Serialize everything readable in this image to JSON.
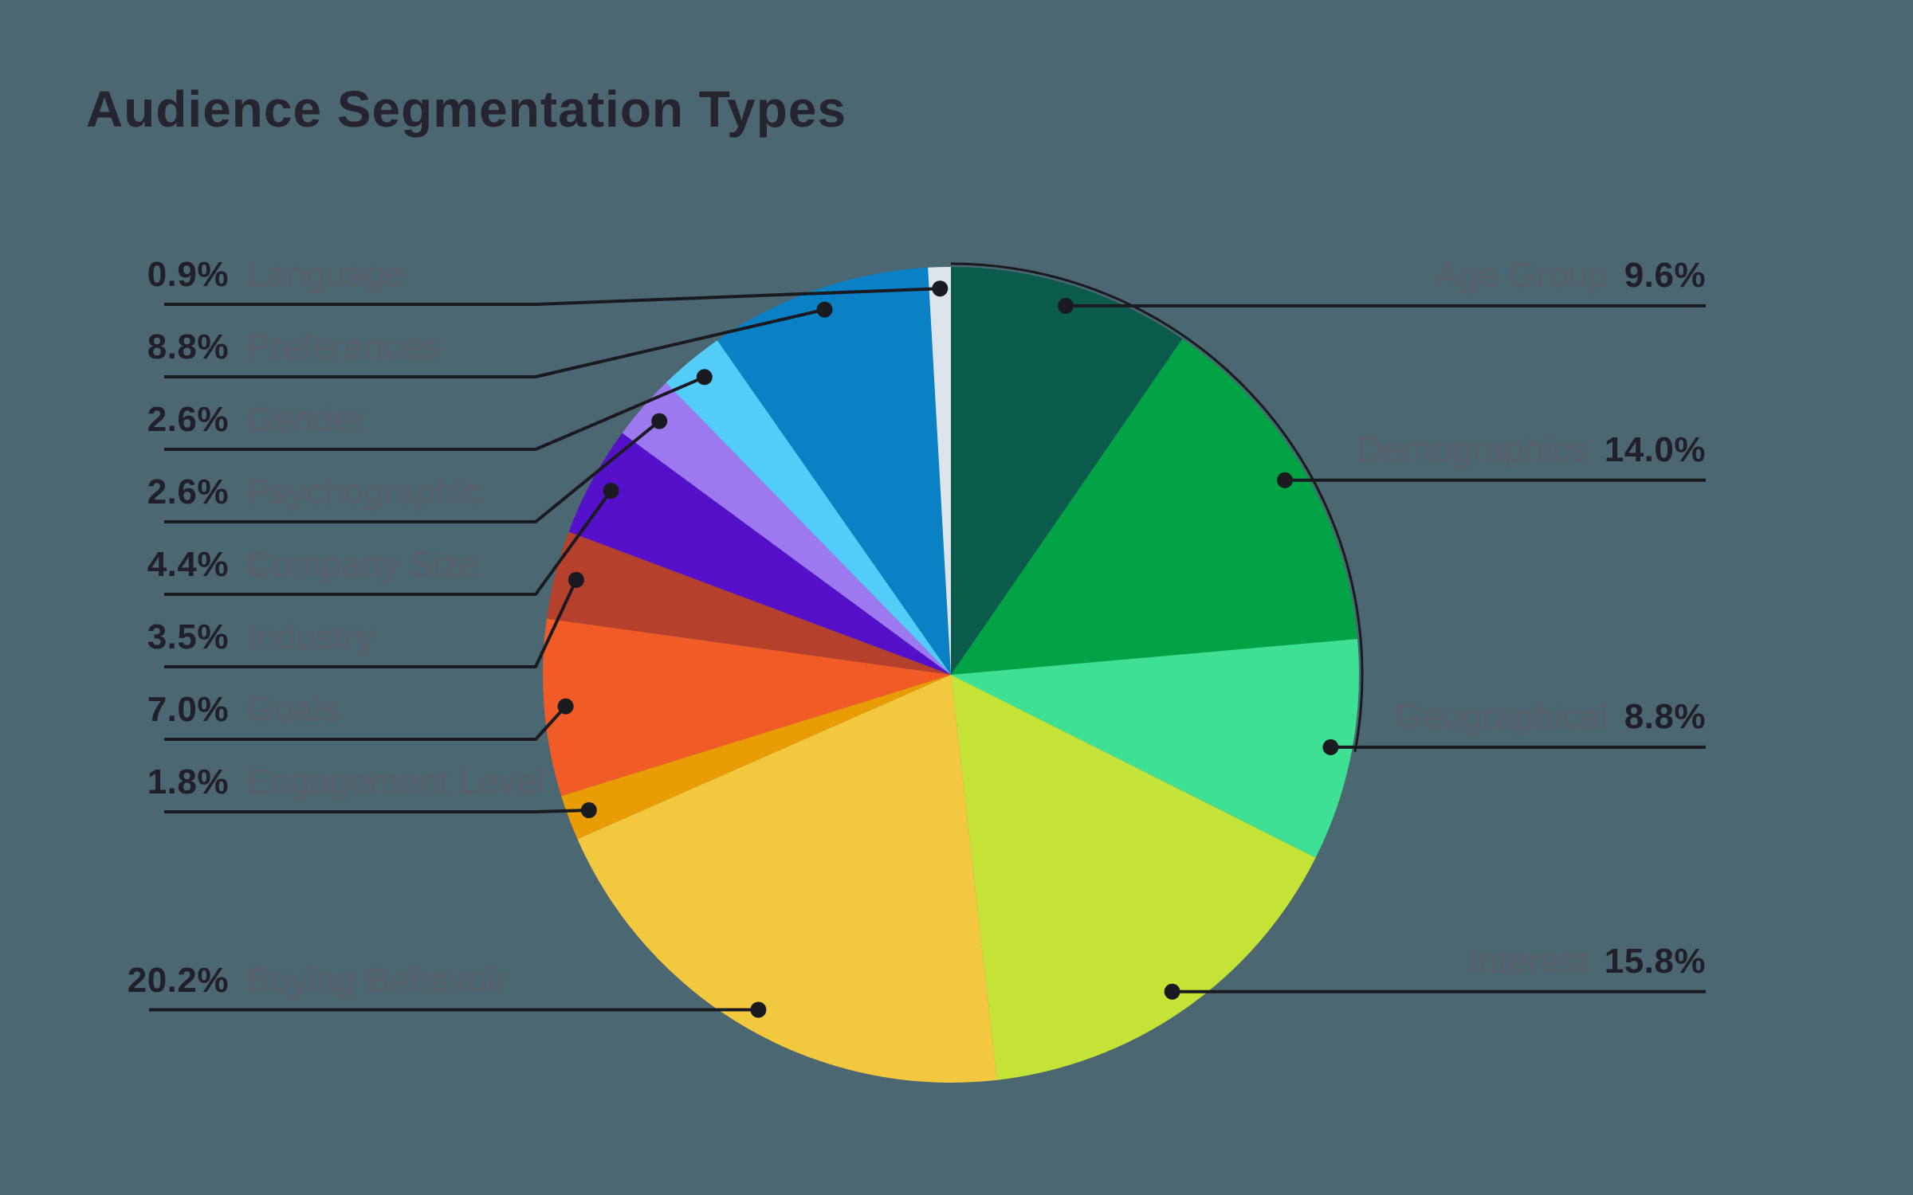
{
  "title": "Audience Segmentation Types",
  "colors": {
    "background": "#4b6771",
    "line": "#1a1a21",
    "percent_text": "#211f2a",
    "label_text": "#5a6069",
    "title_text": "#26242e"
  },
  "chart_data": {
    "type": "pie",
    "title": "Audience Segmentation Types",
    "start_angle_deg": 0,
    "direction": "clockwise",
    "legend_position": "callout-labels-left-and-right",
    "slices": [
      {
        "label": "Age Group",
        "value": 9.6,
        "percent_label": "9.6%",
        "color": "#0b5c4d",
        "side": "right"
      },
      {
        "label": "Demographics",
        "value": 14.0,
        "percent_label": "14.0%",
        "color": "#02a344",
        "side": "right"
      },
      {
        "label": "Geographical",
        "value": 8.8,
        "percent_label": "8.8%",
        "color": "#3ee094",
        "side": "right"
      },
      {
        "label": "Interest",
        "value": 15.8,
        "percent_label": "15.8%",
        "color": "#c5e336",
        "side": "right"
      },
      {
        "label": "Buying Behavoir",
        "value": 20.2,
        "percent_label": "20.2%",
        "color": "#f2c83e",
        "side": "left-long"
      },
      {
        "label": "Engagement Level",
        "value": 1.8,
        "percent_label": "1.8%",
        "color": "#e99c04",
        "side": "left"
      },
      {
        "label": "Goals",
        "value": 7.0,
        "percent_label": "7.0%",
        "color": "#f15b25",
        "side": "left"
      },
      {
        "label": "Industry",
        "value": 3.5,
        "percent_label": "3.5%",
        "color": "#b5402c",
        "side": "left"
      },
      {
        "label": "Company Size",
        "value": 4.4,
        "percent_label": "4.4%",
        "color": "#5511c9",
        "side": "left"
      },
      {
        "label": "Psychographic",
        "value": 2.6,
        "percent_label": "2.6%",
        "color": "#9c79ef",
        "side": "left"
      },
      {
        "label": "Gender",
        "value": 2.6,
        "percent_label": "2.6%",
        "color": "#54ccf8",
        "side": "left"
      },
      {
        "label": "Preferences",
        "value": 8.8,
        "percent_label": "8.8%",
        "color": "#0a80c5",
        "side": "left"
      },
      {
        "label": "Language",
        "value": 0.9,
        "percent_label": "0.9%",
        "color": "#dde4ec",
        "side": "left"
      }
    ]
  }
}
